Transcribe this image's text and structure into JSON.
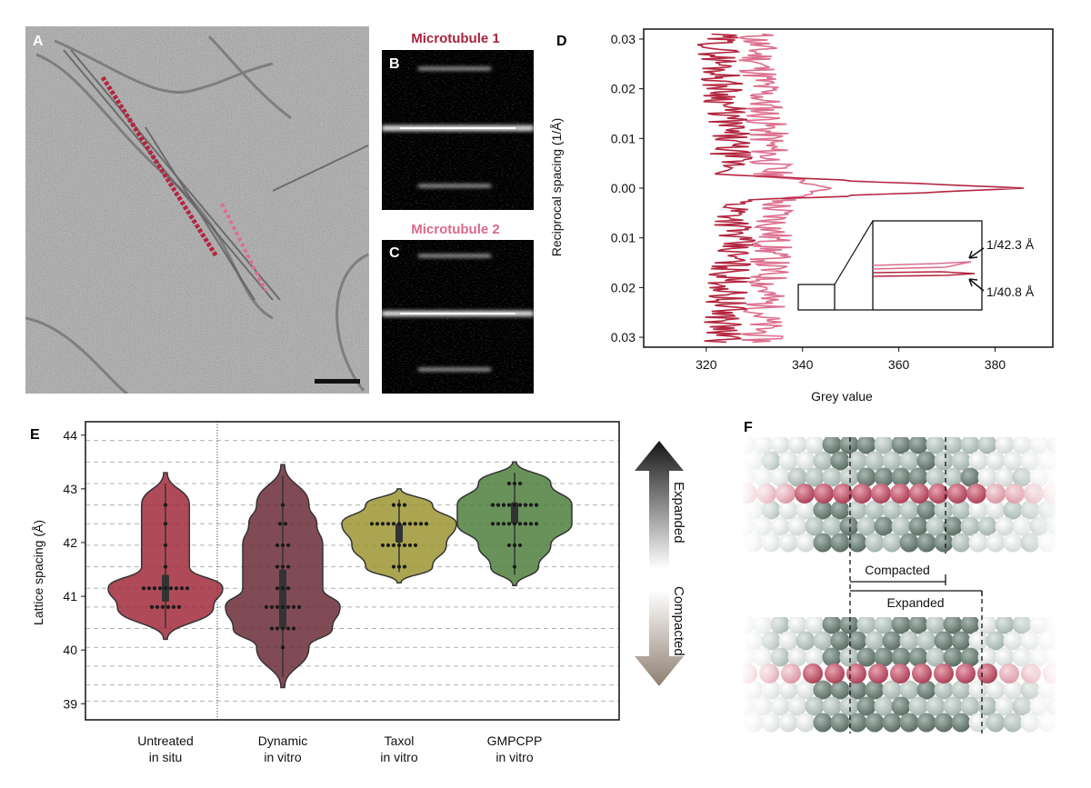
{
  "panels": {
    "A": {
      "label": "A"
    },
    "B": {
      "label": "B",
      "title": "Microtubule 1",
      "title_color": "#a8233c"
    },
    "C": {
      "label": "C",
      "title": "Microtubule 2",
      "title_color": "#d9698a"
    },
    "D": {
      "label": "D"
    },
    "E": {
      "label": "E"
    },
    "F": {
      "label": "F",
      "compacted_label": "Compacted",
      "expanded_label": "Expanded"
    }
  },
  "arrow_labels": {
    "expanded": "Expanded",
    "compacted": "Compacted"
  },
  "colors": {
    "mt1": "#b3263f",
    "mt2": "#dc6f8f",
    "untreated": "#a12a3c",
    "dynamic": "#6b2b37",
    "taxol": "#9c9534",
    "gmpcpp": "#4f7f3e"
  },
  "chart_data": [
    {
      "type": "line",
      "panel": "D",
      "xlabel": "Grey value",
      "ylabel": "Reciprocal spacing (1/Å)",
      "xlim": [
        307,
        392
      ],
      "ylim": [
        -0.032,
        0.032
      ],
      "xticks": [
        "320",
        "340",
        "360",
        "380"
      ],
      "yticks": [
        "0.03",
        "0.02",
        "0.01",
        "0.00",
        "0.01",
        "0.02",
        "0.03"
      ],
      "series": [
        {
          "key": "mt1",
          "color": "#b3263f",
          "peak": 386,
          "base": 327,
          "upper_base": 326
        },
        {
          "key": "mt2",
          "color": "#dc6f8f",
          "peak": 346,
          "base": 335,
          "upper_base": 334
        }
      ],
      "annotations": [
        "1/42.3 Å",
        "1/40.8 Å"
      ]
    },
    {
      "type": "violin",
      "panel": "E",
      "ylabel": "Lattice spacing (Å)",
      "ylim": [
        38.7,
        44.25
      ],
      "yticks": [
        "39",
        "40",
        "41",
        "42",
        "43",
        "44"
      ],
      "categories": [
        "Untreated\nin situ",
        "Dynamic\nin vitro",
        "Taxol\nin vitro",
        "GMPCPP\nin vitro"
      ],
      "groups": [
        {
          "name": "Untreated in situ",
          "line1": "Untreated",
          "line2": "in situ",
          "color": "#a12a3c",
          "min": 40.2,
          "max": 43.3,
          "q1": 40.9,
          "q3": 41.4,
          "levels": [
            [
              40.8,
              6
            ],
            [
              41.15,
              9
            ],
            [
              41.55,
              1
            ],
            [
              41.95,
              1
            ],
            [
              42.35,
              1
            ],
            [
              42.7,
              1
            ]
          ]
        },
        {
          "name": "Dynamic in vitro",
          "line1": "Dynamic",
          "line2": "in vitro",
          "color": "#6b2b37",
          "min": 39.3,
          "max": 43.45,
          "q1": 40.4,
          "q3": 41.5,
          "levels": [
            [
              40.05,
              1
            ],
            [
              40.4,
              5
            ],
            [
              40.8,
              7
            ],
            [
              41.15,
              3
            ],
            [
              41.55,
              3
            ],
            [
              41.95,
              3
            ],
            [
              42.35,
              2
            ],
            [
              42.7,
              1
            ]
          ]
        },
        {
          "name": "Taxol in vitro",
          "line1": "Taxol",
          "line2": "in vitro",
          "color": "#9c9534",
          "min": 41.25,
          "max": 43.0,
          "q1": 42.0,
          "q3": 42.35,
          "levels": [
            [
              41.55,
              3
            ],
            [
              41.95,
              7
            ],
            [
              42.35,
              11
            ],
            [
              42.7,
              3
            ]
          ]
        },
        {
          "name": "GMPCPP in vitro",
          "line1": "GMPCPP",
          "line2": "in vitro",
          "color": "#4f7f3e",
          "min": 41.2,
          "max": 43.5,
          "q1": 42.35,
          "q3": 42.75,
          "levels": [
            [
              41.55,
              1
            ],
            [
              41.95,
              3
            ],
            [
              42.35,
              9
            ],
            [
              42.7,
              9
            ],
            [
              43.1,
              3
            ]
          ]
        }
      ]
    }
  ]
}
